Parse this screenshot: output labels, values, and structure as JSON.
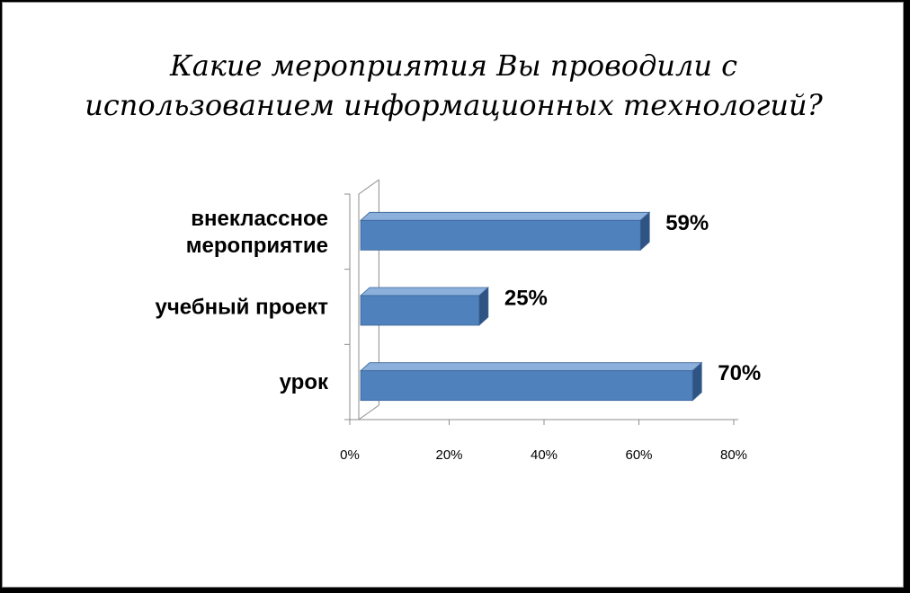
{
  "chart_data": {
    "type": "bar",
    "orientation": "horizontal",
    "style": "3d",
    "title": "Какие мероприятия Вы проводили с\nиспользованием информационных технологий?",
    "categories": [
      "внеклассное мероприятие",
      "учебный проект",
      "урок"
    ],
    "category_lines": [
      [
        "внеклассное",
        "мероприятие"
      ],
      [
        "учебный проект"
      ],
      [
        "урок"
      ]
    ],
    "values": [
      59,
      25,
      70
    ],
    "value_labels": [
      "59%",
      "25%",
      "70%"
    ],
    "xlim": [
      0,
      80
    ],
    "xticks": [
      "0%",
      "20%",
      "40%",
      "60%",
      "80%"
    ],
    "xlabel": "",
    "ylabel": "",
    "grid": false,
    "legend": "none",
    "colors": {
      "bar_front": "#4f81bd",
      "bar_top": "#8cb0dc",
      "bar_side": "#2f5383",
      "bar_edge": "#3a6498",
      "axis": "#8c8c8c"
    }
  }
}
